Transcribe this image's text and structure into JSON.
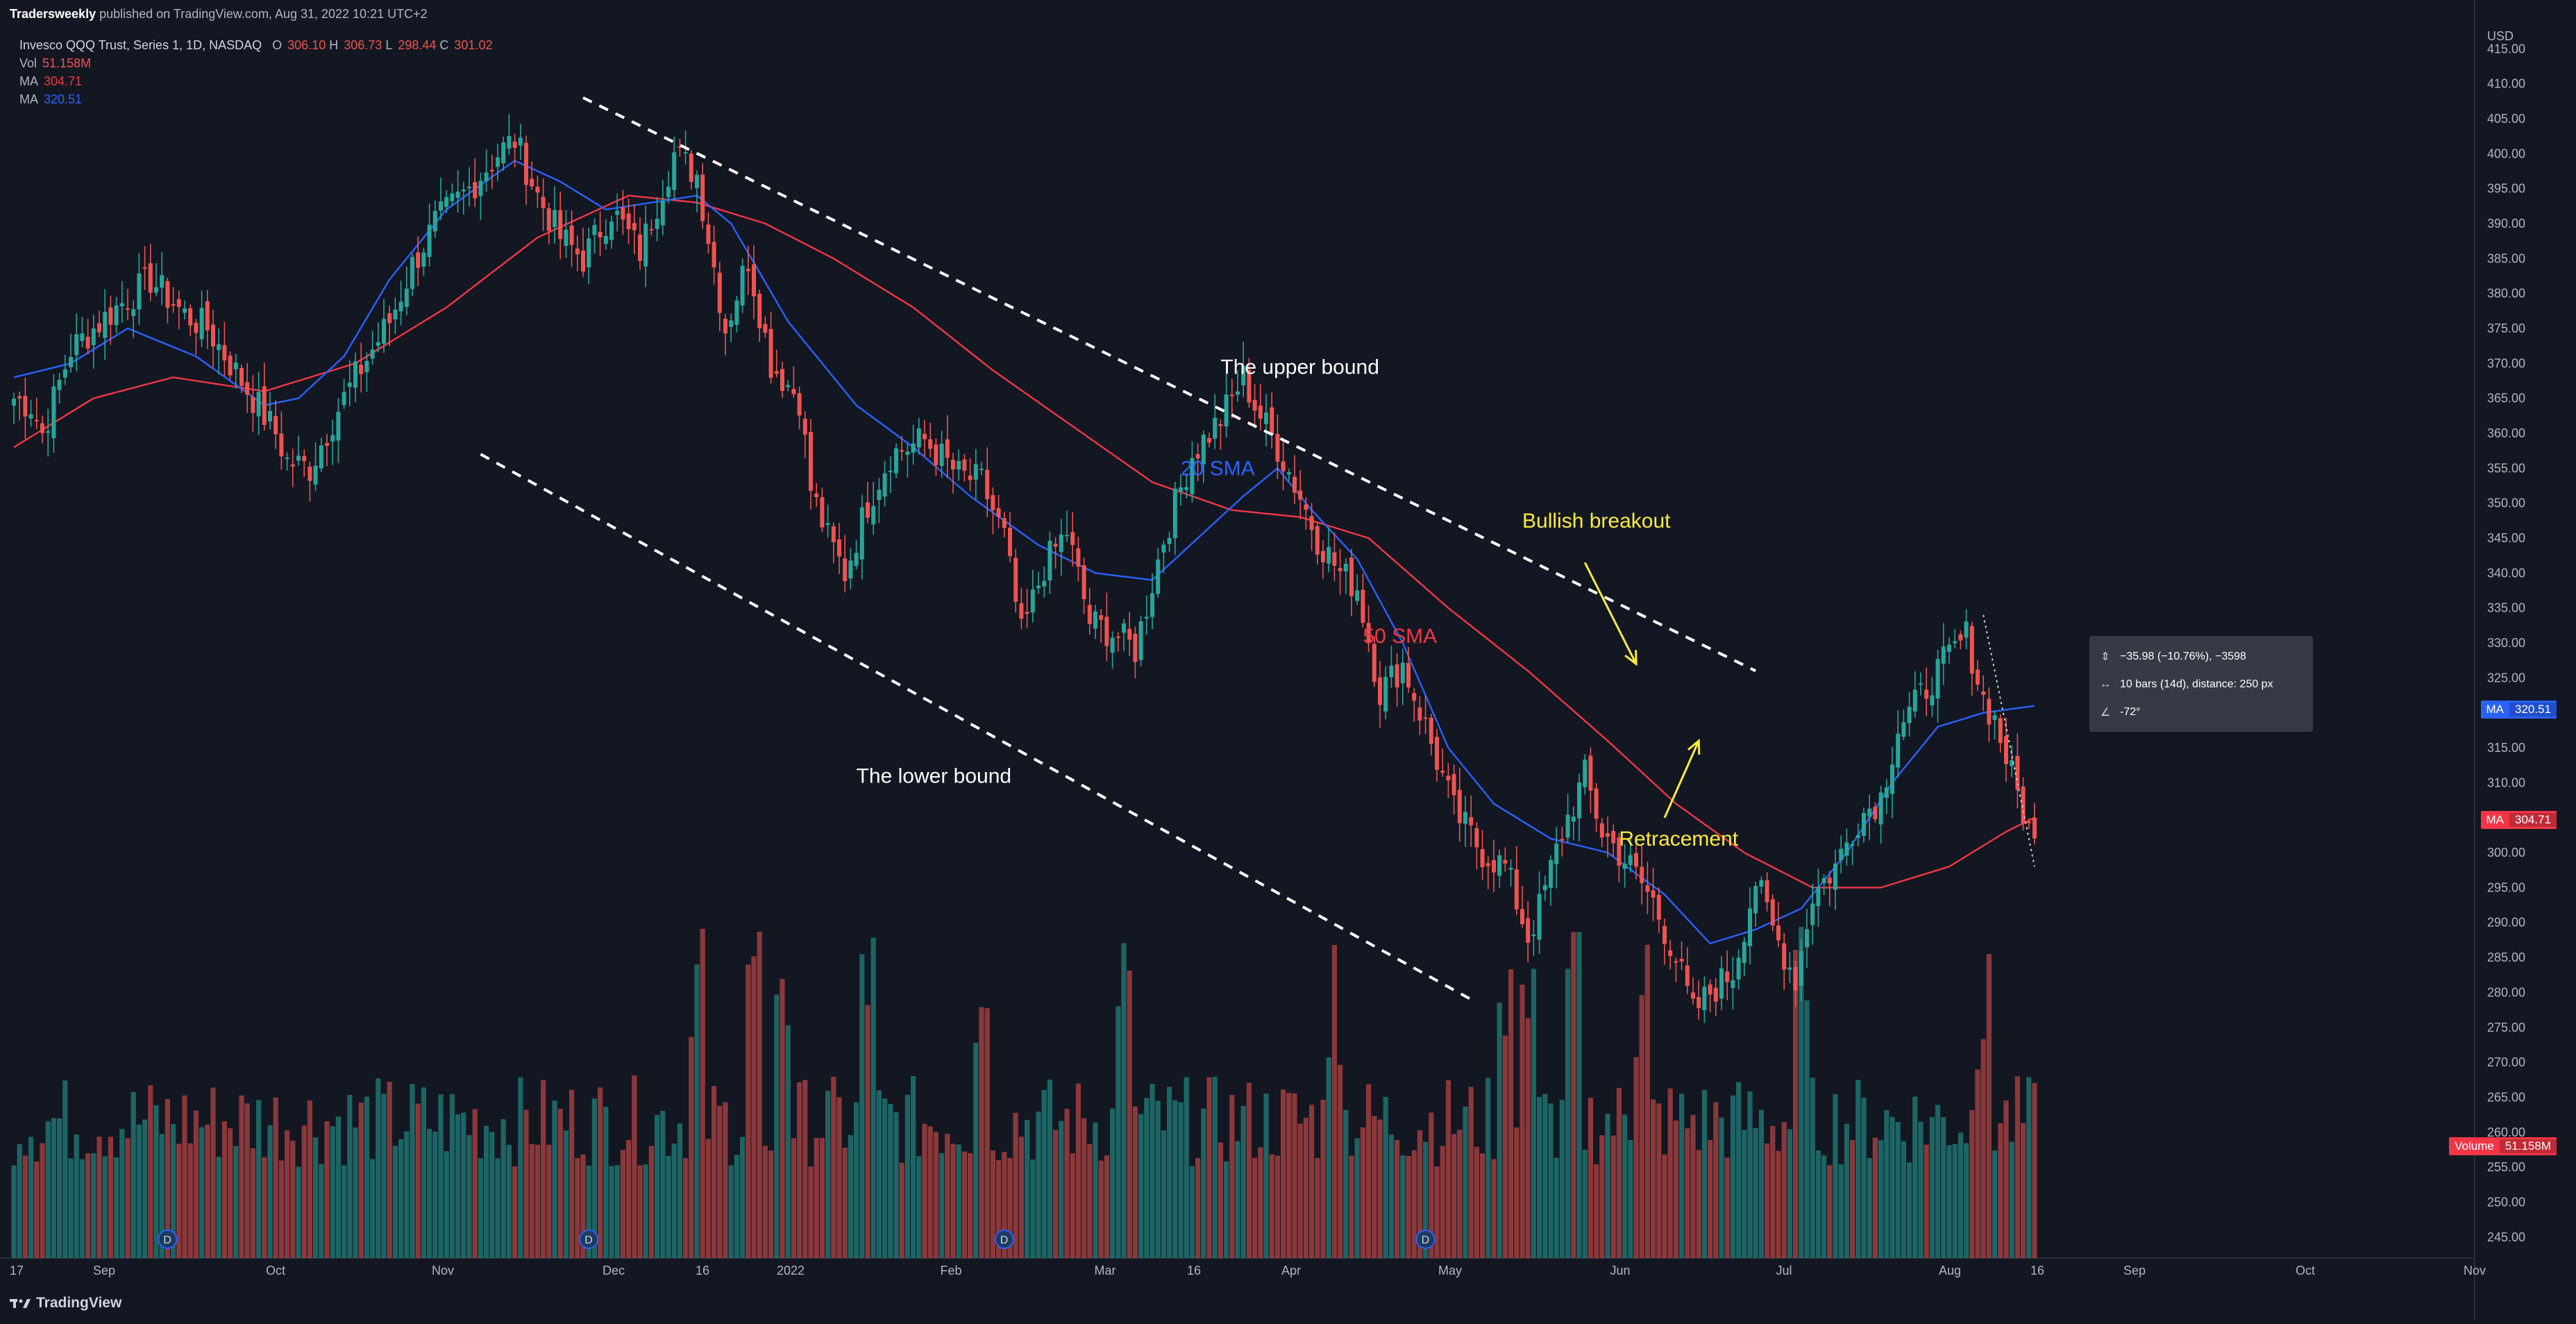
{
  "header": {
    "publisher": "Tradersweekly",
    "published_text": "published on TradingView.com, Aug 31, 2022 10:21 UTC+2"
  },
  "legend": {
    "symbol": "Invesco QQQ Trust, Series 1, 1D, NASDAQ",
    "open_label": "O",
    "open": "306.10",
    "high_label": "H",
    "high": "306.73",
    "low_label": "L",
    "low": "298.44",
    "close_label": "C",
    "close": "301.02",
    "vol_label": "Vol",
    "vol": "51.158M",
    "ma1_label": "MA",
    "ma1": "304.71",
    "ma2_label": "MA",
    "ma2": "320.51"
  },
  "price_axis": {
    "currency": "USD",
    "badges": [
      {
        "label": "MA",
        "value": "320.51",
        "color": "#2962ff",
        "price": 320.51
      },
      {
        "label": "MA",
        "value": "304.71",
        "color": "#f23645",
        "price": 304.71
      },
      {
        "label": "Volume",
        "value": "51.158M",
        "color": "#f23645",
        "price": 258.0
      }
    ]
  },
  "measure_tooltip": {
    "price_change": "−35.98 (−10.76%), −3598",
    "bars": "10 bars (14d), distance: 250 px",
    "angle": "-72°"
  },
  "footer": {
    "brand": "TradingView"
  },
  "colors": {
    "background": "#131722",
    "up": "#26a69a",
    "down": "#ef5350",
    "vol_up": "#26a69a",
    "vol_down": "#ef5350",
    "sma20": "#2962ff",
    "sma50": "#f23645",
    "annotation_yellow": "#ffeb3b",
    "text": "#d1d4dc"
  },
  "chart_data": {
    "type": "candlestick",
    "symbol": "QQQ",
    "timeframe": "1D",
    "ylim": [
      242,
      419
    ],
    "y_ticks": [
      245,
      250,
      255,
      260,
      265,
      270,
      275,
      280,
      285,
      290,
      295,
      300,
      305,
      310,
      315,
      320,
      325,
      330,
      335,
      340,
      345,
      350,
      355,
      360,
      365,
      370,
      375,
      380,
      385,
      390,
      395,
      400,
      405,
      410,
      415
    ],
    "x_tick_labels": [
      "17",
      "Sep",
      "Oct",
      "Nov",
      "Dec",
      "16",
      "2022",
      "Feb",
      "Mar",
      "16",
      "Apr",
      "May",
      "Jun",
      "Jul",
      "Aug",
      "16",
      "Sep",
      "Oct",
      "Nov"
    ],
    "close_anchors": [
      [
        0,
        365
      ],
      [
        3,
        364
      ],
      [
        5,
        360
      ],
      [
        10,
        372
      ],
      [
        18,
        378
      ],
      [
        24,
        382
      ],
      [
        30,
        377
      ],
      [
        34,
        375
      ],
      [
        38,
        370
      ],
      [
        42,
        365
      ],
      [
        46,
        360
      ],
      [
        48,
        356
      ],
      [
        52,
        355
      ],
      [
        56,
        362
      ],
      [
        60,
        368
      ],
      [
        66,
        376
      ],
      [
        70,
        384
      ],
      [
        74,
        390
      ],
      [
        80,
        395
      ],
      [
        85,
        400
      ],
      [
        88,
        402
      ],
      [
        92,
        394
      ],
      [
        96,
        388
      ],
      [
        100,
        385
      ],
      [
        105,
        392
      ],
      [
        110,
        386
      ],
      [
        116,
        400
      ],
      [
        120,
        397
      ],
      [
        125,
        375
      ],
      [
        129,
        385
      ],
      [
        133,
        370
      ],
      [
        138,
        365
      ],
      [
        140,
        352
      ],
      [
        143,
        345
      ],
      [
        146,
        340
      ],
      [
        150,
        350
      ],
      [
        154,
        357
      ],
      [
        160,
        359
      ],
      [
        166,
        354
      ],
      [
        170,
        353
      ],
      [
        174,
        345
      ],
      [
        177,
        331
      ],
      [
        181,
        341
      ],
      [
        185,
        346
      ],
      [
        189,
        333
      ],
      [
        194,
        331
      ],
      [
        197,
        329
      ],
      [
        202,
        345
      ],
      [
        207,
        357
      ],
      [
        212,
        362
      ],
      [
        216,
        368
      ],
      [
        218,
        364
      ],
      [
        222,
        358
      ],
      [
        226,
        351
      ],
      [
        229,
        345
      ],
      [
        233,
        340
      ],
      [
        236,
        338
      ],
      [
        240,
        323
      ],
      [
        244,
        327
      ],
      [
        248,
        318
      ],
      [
        253,
        306
      ],
      [
        258,
        300
      ],
      [
        262,
        298
      ],
      [
        266,
        288
      ],
      [
        268,
        292
      ],
      [
        272,
        303
      ],
      [
        276,
        311
      ],
      [
        279,
        303
      ],
      [
        284,
        298
      ],
      [
        288,
        293
      ],
      [
        292,
        285
      ],
      [
        295,
        277
      ],
      [
        298,
        280
      ],
      [
        302,
        283
      ],
      [
        306,
        296
      ],
      [
        309,
        289
      ],
      [
        313,
        282
      ],
      [
        316,
        294
      ],
      [
        320,
        298
      ],
      [
        324,
        305
      ],
      [
        328,
        308
      ],
      [
        331,
        318
      ],
      [
        334,
        321
      ],
      [
        337,
        325
      ],
      [
        340,
        328
      ],
      [
        343,
        331
      ],
      [
        346,
        322
      ],
      [
        348,
        319
      ],
      [
        351,
        311
      ],
      [
        353,
        306
      ],
      [
        355,
        301
      ]
    ],
    "sma20_anchors": [
      [
        0,
        368
      ],
      [
        10,
        370
      ],
      [
        20,
        375
      ],
      [
        32,
        371
      ],
      [
        44,
        364
      ],
      [
        50,
        365
      ],
      [
        58,
        371
      ],
      [
        66,
        382
      ],
      [
        76,
        392
      ],
      [
        88,
        399
      ],
      [
        96,
        396
      ],
      [
        104,
        392
      ],
      [
        112,
        393
      ],
      [
        120,
        394
      ],
      [
        126,
        390
      ],
      [
        136,
        376
      ],
      [
        148,
        364
      ],
      [
        158,
        358
      ],
      [
        168,
        351
      ],
      [
        180,
        344
      ],
      [
        190,
        340
      ],
      [
        200,
        339
      ],
      [
        208,
        345
      ],
      [
        216,
        351
      ],
      [
        222,
        355
      ],
      [
        228,
        349
      ],
      [
        236,
        342
      ],
      [
        244,
        330
      ],
      [
        252,
        315
      ],
      [
        260,
        307
      ],
      [
        270,
        302
      ],
      [
        280,
        300
      ],
      [
        290,
        294
      ],
      [
        298,
        287
      ],
      [
        306,
        289
      ],
      [
        314,
        292
      ],
      [
        322,
        300
      ],
      [
        330,
        310
      ],
      [
        338,
        318
      ],
      [
        346,
        320
      ],
      [
        355,
        321
      ]
    ],
    "sma50_anchors": [
      [
        0,
        358
      ],
      [
        14,
        365
      ],
      [
        28,
        368
      ],
      [
        44,
        366
      ],
      [
        60,
        370
      ],
      [
        76,
        378
      ],
      [
        92,
        388
      ],
      [
        108,
        394
      ],
      [
        120,
        393
      ],
      [
        132,
        390
      ],
      [
        144,
        385
      ],
      [
        158,
        378
      ],
      [
        172,
        369
      ],
      [
        186,
        361
      ],
      [
        200,
        353
      ],
      [
        214,
        349
      ],
      [
        226,
        348
      ],
      [
        238,
        345
      ],
      [
        252,
        335
      ],
      [
        266,
        326
      ],
      [
        280,
        316
      ],
      [
        292,
        307
      ],
      [
        304,
        300
      ],
      [
        316,
        295
      ],
      [
        328,
        295
      ],
      [
        340,
        298
      ],
      [
        350,
        303
      ],
      [
        355,
        305
      ]
    ],
    "n_bars": 356,
    "dividend_markers_at_bar": [
      27,
      101,
      174,
      248
    ],
    "trendlines": [
      {
        "name": "upper-bound",
        "from": [
          100,
          408
        ],
        "to": [
          306,
          326
        ]
      },
      {
        "name": "lower-bound",
        "from": [
          82,
          357
        ],
        "to": [
          256,
          279
        ]
      }
    ],
    "annotations": [
      {
        "text": "The upper bound",
        "color": "#ffffff",
        "x": 212,
        "y": 368.5
      },
      {
        "text": "The lower bound",
        "color": "#ffffff",
        "x": 148,
        "y": 310
      },
      {
        "text": "20 SMA",
        "color": "#2962ff",
        "x": 205,
        "y": 354
      },
      {
        "text": "50 SMA",
        "color": "#f23645",
        "x": 237,
        "y": 330
      },
      {
        "text": "Bullish breakout",
        "color": "#ffeb3b",
        "x": 265,
        "y": 346.5
      },
      {
        "text": "Retracement",
        "color": "#ffeb3b",
        "x": 282,
        "y": 301
      }
    ],
    "arrows": [
      {
        "name": "breakout-arrow",
        "from": [
          276,
          341.5
        ],
        "to": [
          285,
          327
        ]
      },
      {
        "name": "retracement-arrow",
        "from": [
          290,
          305
        ],
        "to": [
          296,
          316
        ]
      }
    ]
  }
}
